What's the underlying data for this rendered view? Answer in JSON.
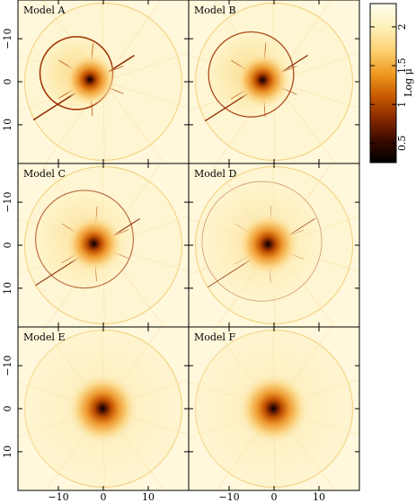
{
  "figure": {
    "panels": [
      {
        "label": "Model A",
        "ring": 0.8,
        "caustic": 1.0
      },
      {
        "label": "Model B",
        "ring": 0.75,
        "caustic": 0.85
      },
      {
        "label": "Model C",
        "ring": 0.6,
        "caustic": 0.7
      },
      {
        "label": "Model D",
        "ring": 0.45,
        "caustic": 0.45
      },
      {
        "label": "Model E",
        "ring": 0.25,
        "caustic": 0.05
      },
      {
        "label": "Model F",
        "ring": 0.25,
        "caustic": 0.05
      }
    ],
    "x_tick_labels": [
      "−10",
      "0",
      "10"
    ],
    "y_tick_labels": [
      "10",
      "0",
      "−10"
    ],
    "colorbar": {
      "label": "Log μ",
      "tick_labels": [
        "0.5",
        "1",
        "1.5",
        "2"
      ],
      "colors": [
        "#000000",
        "#3a0a00",
        "#8a2a00",
        "#c85a00",
        "#ee9a20",
        "#fbd070",
        "#fdf0b8",
        "#fffef0"
      ]
    }
  },
  "chart_data": {
    "type": "heatmap",
    "title": "",
    "xlabel": "",
    "ylabel": "",
    "xlim": [
      -19,
      19
    ],
    "ylim": [
      -19,
      19
    ],
    "x_ticks": [
      -10,
      0,
      10
    ],
    "y_ticks": [
      -10,
      0,
      10
    ],
    "colorbar": {
      "label": "Log μ",
      "range": [
        0.25,
        2.3
      ],
      "ticks": [
        0.5,
        1,
        1.5,
        2
      ]
    },
    "panels": [
      "Model A",
      "Model B",
      "Model C",
      "Model D",
      "Model E",
      "Model F"
    ]
  }
}
